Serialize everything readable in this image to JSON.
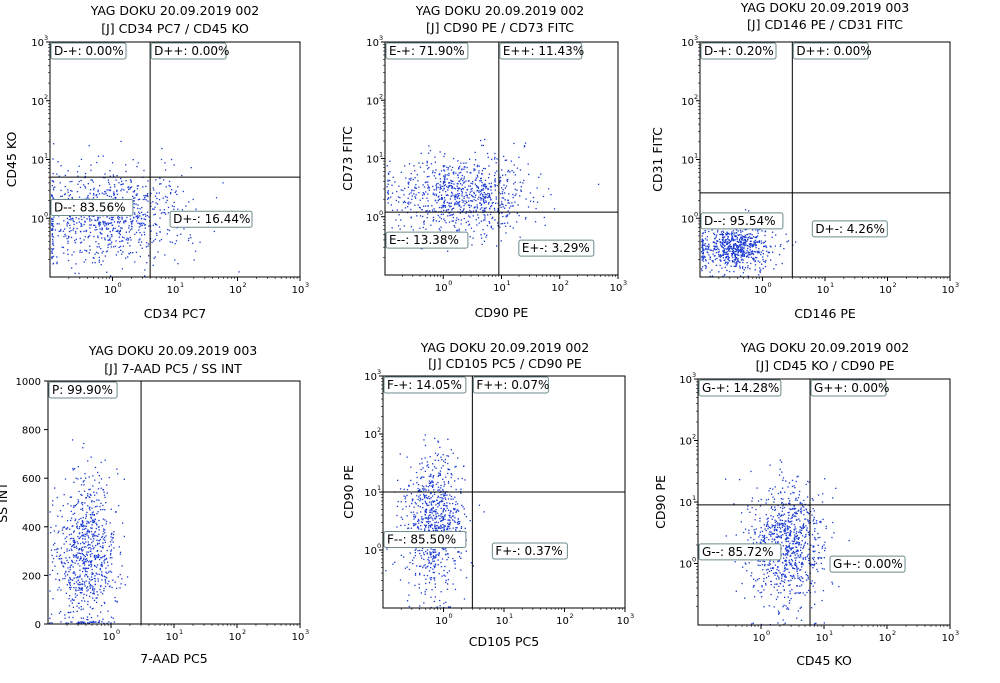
{
  "chart_data": [
    {
      "type": "scatter",
      "title_line1": "YAG DOKU 20.09.2019 002",
      "title_line2": "[J] CD34 PC7 / CD45 KO",
      "xlabel": "CD34 PC7",
      "ylabel": "CD45 KO",
      "x_scale": "log",
      "y_scale": "log",
      "xlim": [
        0.1,
        1000
      ],
      "ylim": [
        0.1,
        1000
      ],
      "gate": {
        "x": 4,
        "y": 5
      },
      "quadrants": {
        "upper_left": "D-+: 0.00%",
        "upper_right": "D++: 0.00%",
        "lower_left": "D--: 83.56%",
        "lower_right": "D+-: 16.44%"
      },
      "clusters": [
        {
          "x_center": 0.9,
          "x_spread": 0.6,
          "y_center": 1.2,
          "y_spread": 0.4,
          "n": 900
        }
      ],
      "series": [
        {
          "color": "#1a3ad0"
        }
      ]
    },
    {
      "type": "scatter",
      "title_line1": "YAG DOKU 20.09.2019 002",
      "title_line2": "[J] CD90 PE / CD73 FITC",
      "xlabel": "CD90 PE",
      "ylabel": "CD73 FITC",
      "x_scale": "log",
      "y_scale": "log",
      "xlim": [
        0.1,
        1000
      ],
      "ylim": [
        0.1,
        1000
      ],
      "gate": {
        "x": 9,
        "y": 1.2
      },
      "quadrants": {
        "upper_left": "E-+: 71.90%",
        "upper_right": "E++: 11.43%",
        "lower_left": "E--: 13.38%",
        "lower_right": "E+-: 3.29%"
      },
      "clusters": [
        {
          "x_center": 2.0,
          "x_spread": 0.6,
          "y_center": 2.5,
          "y_spread": 0.35,
          "n": 850
        }
      ],
      "series": [
        {
          "color": "#1a3ad0"
        }
      ]
    },
    {
      "type": "scatter",
      "title_line1": "YAG DOKU 20.09.2019 003",
      "title_line2": "[J] CD146 PE / CD31 FITC",
      "xlabel": "CD146 PE",
      "ylabel": "CD31 FITC",
      "x_scale": "log",
      "y_scale": "log",
      "xlim": [
        0.1,
        1000
      ],
      "ylim": [
        0.1,
        1000
      ],
      "gate": {
        "x": 3,
        "y": 2.7
      },
      "quadrants": {
        "upper_left": "D-+: 0.20%",
        "upper_right": "D++: 0.00%",
        "lower_left": "D--: 95.54%",
        "lower_right": "D+-: 4.26%"
      },
      "clusters": [
        {
          "x_center": 0.35,
          "x_spread": 0.3,
          "y_center": 0.32,
          "y_spread": 0.2,
          "n": 700
        }
      ],
      "series": [
        {
          "color": "#1a3ad0"
        }
      ]
    },
    {
      "type": "scatter",
      "title_line1": "YAG DOKU 20.09.2019 003",
      "title_line2": "[J] 7-AAD PC5 / SS INT",
      "xlabel": "7-AAD PC5",
      "ylabel": "SS INT",
      "x_scale": "log",
      "y_scale": "linear",
      "xlim": [
        0.1,
        1000
      ],
      "ylim": [
        0,
        1000
      ],
      "y_ticks": [
        0,
        200,
        400,
        600,
        800,
        1000
      ],
      "gate": {
        "x": 3
      },
      "quadrants": {
        "upper_left": "P: 99.90%"
      },
      "clusters": [
        {
          "x_center": 0.4,
          "x_spread": 0.25,
          "y_center": 280,
          "y_spread": 160,
          "n": 800
        }
      ],
      "series": [
        {
          "color": "#1a3ad0"
        }
      ]
    },
    {
      "type": "scatter",
      "title_line1": "YAG DOKU 20.09.2019 002",
      "title_line2": "[J] CD105 PC5 / CD90 PE",
      "xlabel": "CD105 PC5",
      "ylabel": "CD90 PE",
      "x_scale": "log",
      "y_scale": "log",
      "xlim": [
        0.1,
        1000
      ],
      "ylim": [
        0.1,
        1000
      ],
      "gate": {
        "x": 3,
        "y": 10
      },
      "quadrants": {
        "upper_left": "F-+: 14.05%",
        "upper_right": "F++: 0.07%",
        "lower_left": "F--: 85.50%",
        "lower_right": "F+-: 0.37%"
      },
      "clusters": [
        {
          "x_center": 0.7,
          "x_spread": 0.25,
          "y_center": 3,
          "y_spread": 0.55,
          "n": 800
        }
      ],
      "series": [
        {
          "color": "#1a3ad0"
        }
      ]
    },
    {
      "type": "scatter",
      "title_line1": "YAG DOKU 20.09.2019 002",
      "title_line2": "[J] CD45 KO / CD90 PE",
      "xlabel": "CD45 KO",
      "ylabel": "CD90 PE",
      "x_scale": "log",
      "y_scale": "log",
      "xlim": [
        0.1,
        1000
      ],
      "ylim": [
        0.1,
        1000
      ],
      "gate": {
        "x": 6,
        "y": 9
      },
      "quadrants": {
        "upper_left": "G-+: 14.28%",
        "upper_right": "G++: 0.00%",
        "lower_left": "G--: 85.72%",
        "lower_right": "G+-: 0.00%"
      },
      "clusters": [
        {
          "x_center": 2.5,
          "x_spread": 0.3,
          "y_center": 2.0,
          "y_spread": 0.5,
          "n": 900
        }
      ],
      "series": [
        {
          "color": "#1a3ad0"
        }
      ]
    }
  ]
}
